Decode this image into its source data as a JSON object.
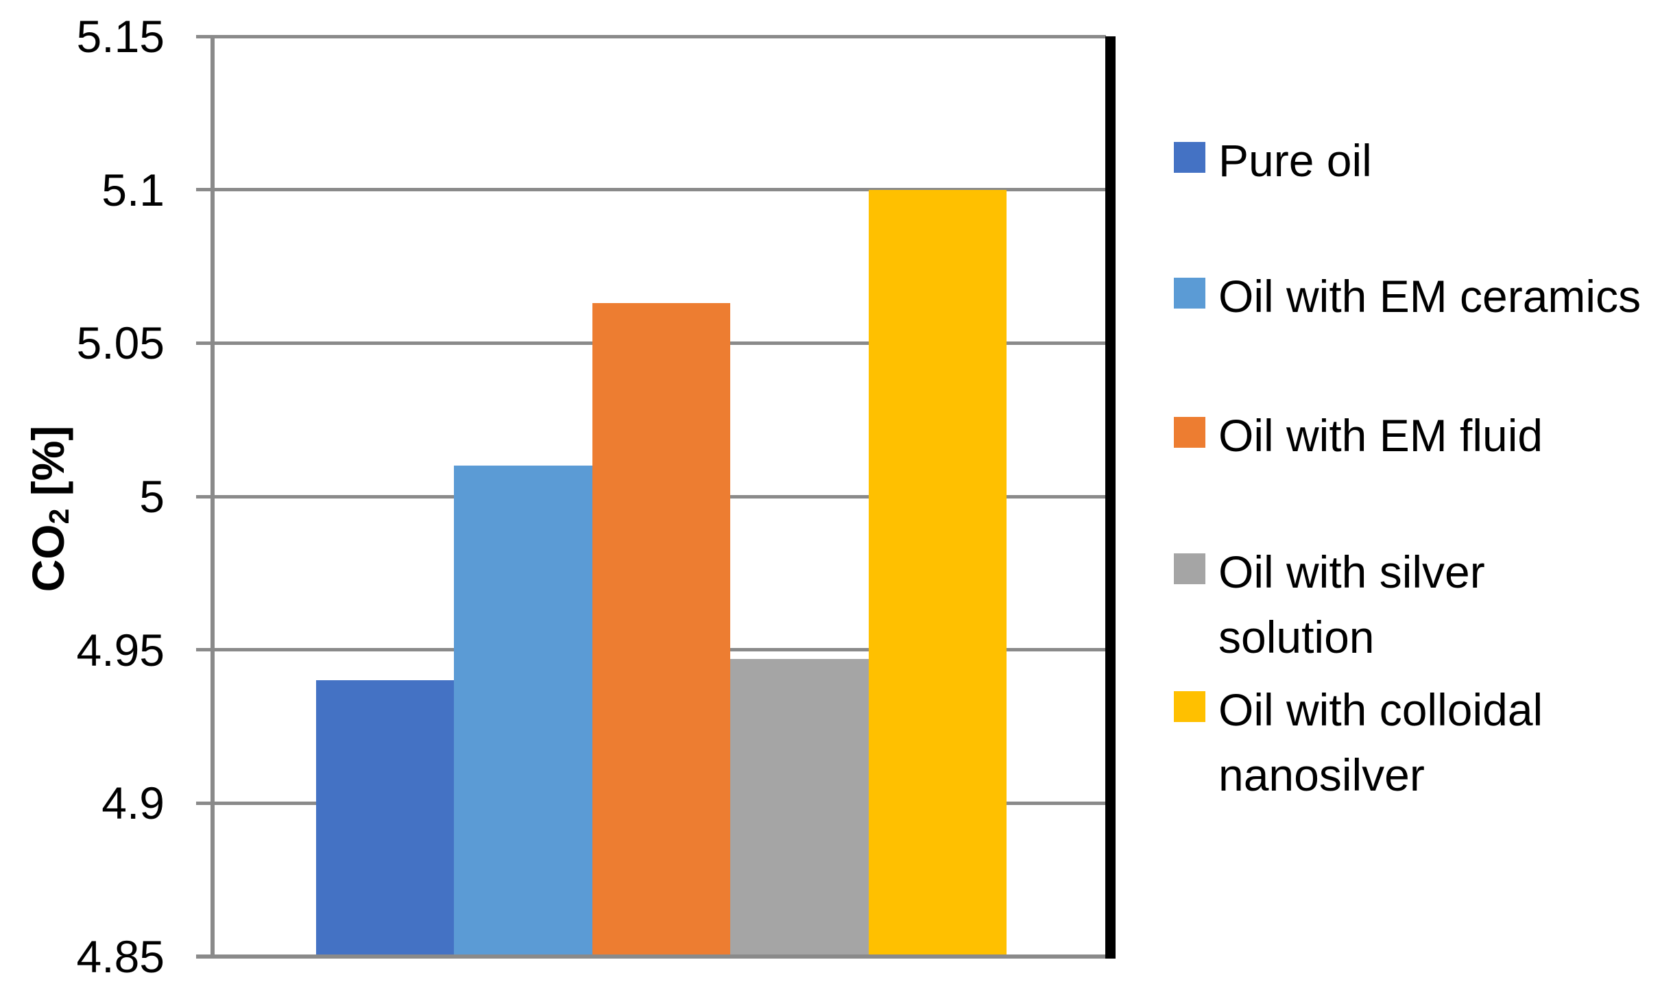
{
  "chart_data": {
    "type": "bar",
    "title": "",
    "xlabel": "",
    "ylabel": {
      "main": "CO",
      "sub": "2",
      "rest": " [%]"
    },
    "ylim": [
      4.85,
      5.15
    ],
    "yticks": [
      5.15,
      5.1,
      5.05,
      5,
      4.95,
      4.9,
      4.85
    ],
    "ytick_labels": [
      "5.15",
      "5.1",
      "5.05",
      "5",
      "4.95",
      "4.9",
      "4.85"
    ],
    "grid": true,
    "legend_position": "right",
    "categories": [
      ""
    ],
    "series": [
      {
        "name": "Pure oil",
        "legend_lines": "Pure oil",
        "value": 4.94,
        "color": "#4472C4"
      },
      {
        "name": "Oil with EM ceramics",
        "legend_lines": "Oil with EM ceramics",
        "value": 5.01,
        "color": "#5B9BD5"
      },
      {
        "name": "Oil with EM fluid",
        "legend_lines": "Oil with EM fluid",
        "value": 5.063,
        "color": "#ED7D31"
      },
      {
        "name": "Oil with silver solution",
        "legend_lines": "Oil with silver\nsolution",
        "value": 4.947,
        "color": "#A5A5A5"
      },
      {
        "name": "Oil with colloidal nanosilver",
        "legend_lines": "Oil with colloidal\nnanosilver",
        "value": 5.1,
        "color": "#FFC000"
      }
    ],
    "colors": {
      "gridline": "#8A8A8A",
      "axis": "#8A8A8A",
      "right_border": "#000000",
      "text": "#000000",
      "background": "#FFFFFF"
    }
  }
}
